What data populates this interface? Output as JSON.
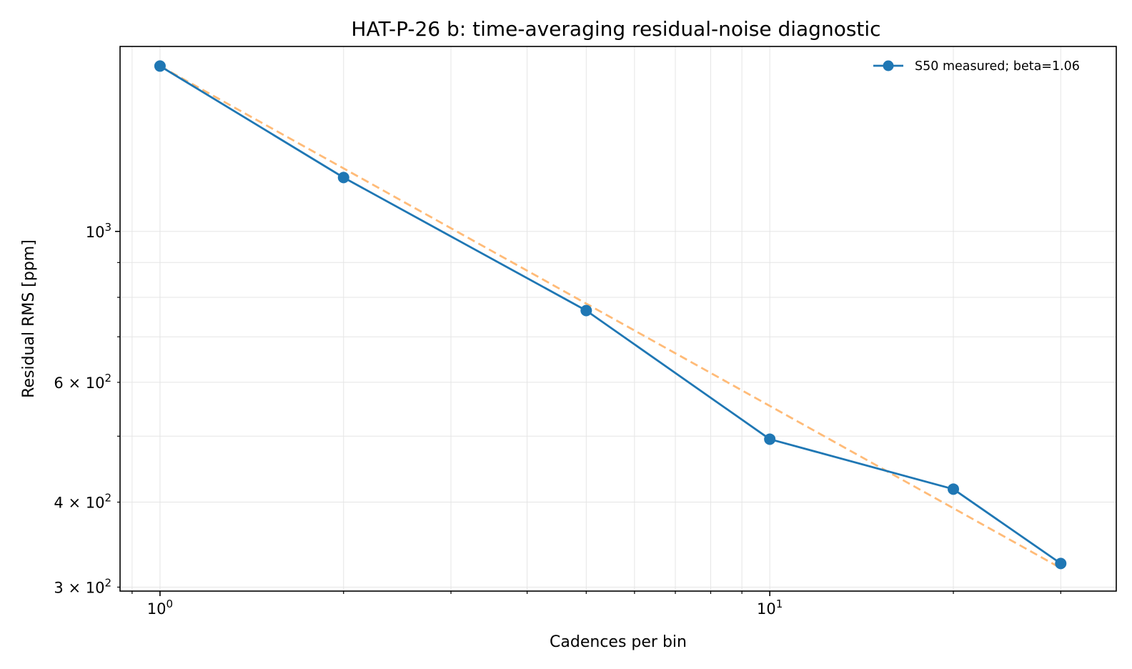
{
  "chart_data": {
    "type": "line",
    "title": "HAT-P-26 b: time-averaging residual-noise diagnostic",
    "xlabel": "Cadences per bin",
    "ylabel": "Residual RMS [ppm]",
    "xscale": "log",
    "yscale": "log",
    "xlim": [
      0.86,
      37
    ],
    "ylim": [
      296,
      1870
    ],
    "grid": true,
    "legend_position": "upper-right",
    "x_major_ticks": [
      {
        "value": 1,
        "base": "10",
        "exp": "0"
      },
      {
        "value": 10,
        "base": "10",
        "exp": "1"
      }
    ],
    "y_major_ticks": [
      {
        "value": 1000,
        "prefix": "",
        "base": "10",
        "exp": "3"
      }
    ],
    "y_minor_labeled_ticks": [
      {
        "value": 300,
        "prefix": "3 × ",
        "base": "10",
        "exp": "2"
      },
      {
        "value": 400,
        "prefix": "4 × ",
        "base": "10",
        "exp": "2"
      },
      {
        "value": 600,
        "prefix": "6 × ",
        "base": "10",
        "exp": "2"
      }
    ],
    "series": [
      {
        "name": "S50 measured; beta=1.06",
        "color": "#1f77b4",
        "style": "line-marker",
        "x": [
          1,
          2,
          5,
          10,
          20,
          30
        ],
        "y": [
          1750,
          1200,
          765,
          495,
          418,
          325
        ]
      },
      {
        "color": "#ffbb78",
        "style": "dashed",
        "x": [
          1,
          30
        ],
        "y": [
          1750,
          320
        ]
      }
    ]
  }
}
